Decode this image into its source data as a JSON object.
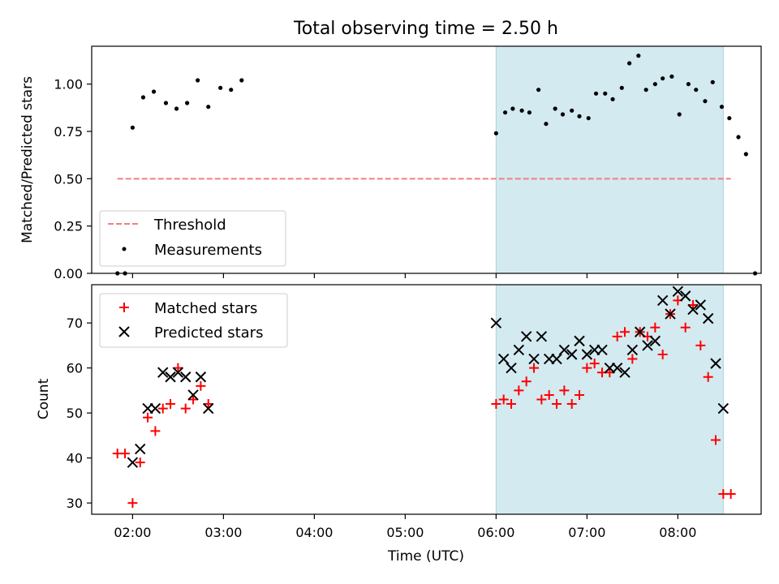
{
  "figure": {
    "title": "Total observing time = 2.50 h"
  },
  "chart_data": [
    {
      "type": "scatter",
      "ylabel": "Matched/Predicted stars",
      "xlim": [
        "01:33",
        "08:55"
      ],
      "ylim": [
        0,
        1.2
      ],
      "yticks": [
        "0.00",
        "0.25",
        "0.50",
        "0.75",
        "1.00"
      ],
      "grid": false,
      "legend": "lower-left",
      "shaded_span": [
        "06:00",
        "08:30"
      ],
      "shaded_color": "#d3eaf0",
      "threshold": {
        "name": "Threshold",
        "y": 0.5,
        "x_range": [
          "01:50",
          "08:35"
        ],
        "color": "#f08080",
        "style": "dashed"
      },
      "series": [
        {
          "name": "Measurements",
          "color": "#000000",
          "marker": "dot",
          "points": [
            [
              "01:50",
              0.0
            ],
            [
              "01:55",
              0.0
            ],
            [
              "02:00",
              0.77
            ],
            [
              "02:07",
              0.93
            ],
            [
              "02:14",
              0.96
            ],
            [
              "02:22",
              0.9
            ],
            [
              "02:29",
              0.87
            ],
            [
              "02:36",
              0.9
            ],
            [
              "02:43",
              1.02
            ],
            [
              "02:50",
              0.88
            ],
            [
              "02:58",
              0.98
            ],
            [
              "03:05",
              0.97
            ],
            [
              "03:12",
              1.02
            ],
            [
              "06:00",
              0.74
            ],
            [
              "06:06",
              0.85
            ],
            [
              "06:11",
              0.87
            ],
            [
              "06:17",
              0.86
            ],
            [
              "06:22",
              0.85
            ],
            [
              "06:28",
              0.97
            ],
            [
              "06:33",
              0.79
            ],
            [
              "06:39",
              0.87
            ],
            [
              "06:44",
              0.84
            ],
            [
              "06:50",
              0.86
            ],
            [
              "06:55",
              0.83
            ],
            [
              "07:01",
              0.82
            ],
            [
              "07:06",
              0.95
            ],
            [
              "07:12",
              0.95
            ],
            [
              "07:17",
              0.92
            ],
            [
              "07:23",
              0.98
            ],
            [
              "07:28",
              1.11
            ],
            [
              "07:34",
              1.15
            ],
            [
              "07:39",
              0.97
            ],
            [
              "07:45",
              1.0
            ],
            [
              "07:50",
              1.03
            ],
            [
              "07:56",
              1.04
            ],
            [
              "08:01",
              0.84
            ],
            [
              "08:07",
              1.0
            ],
            [
              "08:12",
              0.97
            ],
            [
              "08:18",
              0.91
            ],
            [
              "08:23",
              1.01
            ],
            [
              "08:29",
              0.88
            ],
            [
              "08:34",
              0.82
            ],
            [
              "08:40",
              0.72
            ],
            [
              "08:45",
              0.63
            ],
            [
              "08:51",
              0.0
            ]
          ]
        }
      ]
    },
    {
      "type": "scatter",
      "xlabel": "Time (UTC)",
      "ylabel": "Count",
      "xlim": [
        "01:33",
        "08:55"
      ],
      "xticks": [
        "02:00",
        "03:00",
        "04:00",
        "05:00",
        "06:00",
        "07:00",
        "08:00"
      ],
      "ylim": [
        27.5,
        78.5
      ],
      "yticks": [
        "30",
        "40",
        "50",
        "60",
        "70"
      ],
      "grid": false,
      "legend": "upper-left",
      "shaded_span": [
        "06:00",
        "08:30"
      ],
      "shaded_color": "#d3eaf0",
      "series": [
        {
          "name": "Matched stars",
          "color": "#ff0000",
          "marker": "plus",
          "points": [
            [
              "01:50",
              41
            ],
            [
              "01:55",
              41
            ],
            [
              "02:00",
              30
            ],
            [
              "02:05",
              39
            ],
            [
              "02:10",
              49
            ],
            [
              "02:15",
              46
            ],
            [
              "02:20",
              51
            ],
            [
              "02:25",
              52
            ],
            [
              "02:30",
              60
            ],
            [
              "02:35",
              51
            ],
            [
              "02:40",
              53
            ],
            [
              "02:45",
              56
            ],
            [
              "02:50",
              52
            ],
            [
              "06:00",
              52
            ],
            [
              "06:05",
              53
            ],
            [
              "06:10",
              52
            ],
            [
              "06:15",
              55
            ],
            [
              "06:20",
              57
            ],
            [
              "06:25",
              60
            ],
            [
              "06:30",
              53
            ],
            [
              "06:35",
              54
            ],
            [
              "06:40",
              52
            ],
            [
              "06:45",
              55
            ],
            [
              "06:50",
              52
            ],
            [
              "06:55",
              54
            ],
            [
              "07:00",
              60
            ],
            [
              "07:05",
              61
            ],
            [
              "07:10",
              59
            ],
            [
              "07:15",
              59
            ],
            [
              "07:20",
              67
            ],
            [
              "07:25",
              68
            ],
            [
              "07:30",
              62
            ],
            [
              "07:35",
              68
            ],
            [
              "07:40",
              67
            ],
            [
              "07:45",
              69
            ],
            [
              "07:50",
              63
            ],
            [
              "07:55",
              72
            ],
            [
              "08:00",
              75
            ],
            [
              "08:05",
              69
            ],
            [
              "08:10",
              74
            ],
            [
              "08:15",
              65
            ],
            [
              "08:20",
              58
            ],
            [
              "08:25",
              44
            ],
            [
              "08:30",
              32
            ],
            [
              "08:35",
              32
            ]
          ]
        },
        {
          "name": "Predicted stars",
          "color": "#000000",
          "marker": "x",
          "points": [
            [
              "02:00",
              39
            ],
            [
              "02:05",
              42
            ],
            [
              "02:10",
              51
            ],
            [
              "02:15",
              51
            ],
            [
              "02:20",
              59
            ],
            [
              "02:25",
              58
            ],
            [
              "02:30",
              59
            ],
            [
              "02:35",
              58
            ],
            [
              "02:40",
              54
            ],
            [
              "02:45",
              58
            ],
            [
              "02:50",
              51
            ],
            [
              "06:00",
              70
            ],
            [
              "06:05",
              62
            ],
            [
              "06:10",
              60
            ],
            [
              "06:15",
              64
            ],
            [
              "06:20",
              67
            ],
            [
              "06:25",
              62
            ],
            [
              "06:30",
              67
            ],
            [
              "06:35",
              62
            ],
            [
              "06:40",
              62
            ],
            [
              "06:45",
              64
            ],
            [
              "06:50",
              63
            ],
            [
              "06:55",
              66
            ],
            [
              "07:00",
              63
            ],
            [
              "07:05",
              64
            ],
            [
              "07:10",
              64
            ],
            [
              "07:15",
              60
            ],
            [
              "07:20",
              60
            ],
            [
              "07:25",
              59
            ],
            [
              "07:30",
              64
            ],
            [
              "07:35",
              68
            ],
            [
              "07:40",
              65
            ],
            [
              "07:45",
              66
            ],
            [
              "07:50",
              75
            ],
            [
              "07:55",
              72
            ],
            [
              "08:00",
              77
            ],
            [
              "08:05",
              76
            ],
            [
              "08:10",
              73
            ],
            [
              "08:15",
              74
            ],
            [
              "08:20",
              71
            ],
            [
              "08:25",
              61
            ],
            [
              "08:30",
              51
            ]
          ]
        }
      ]
    }
  ]
}
